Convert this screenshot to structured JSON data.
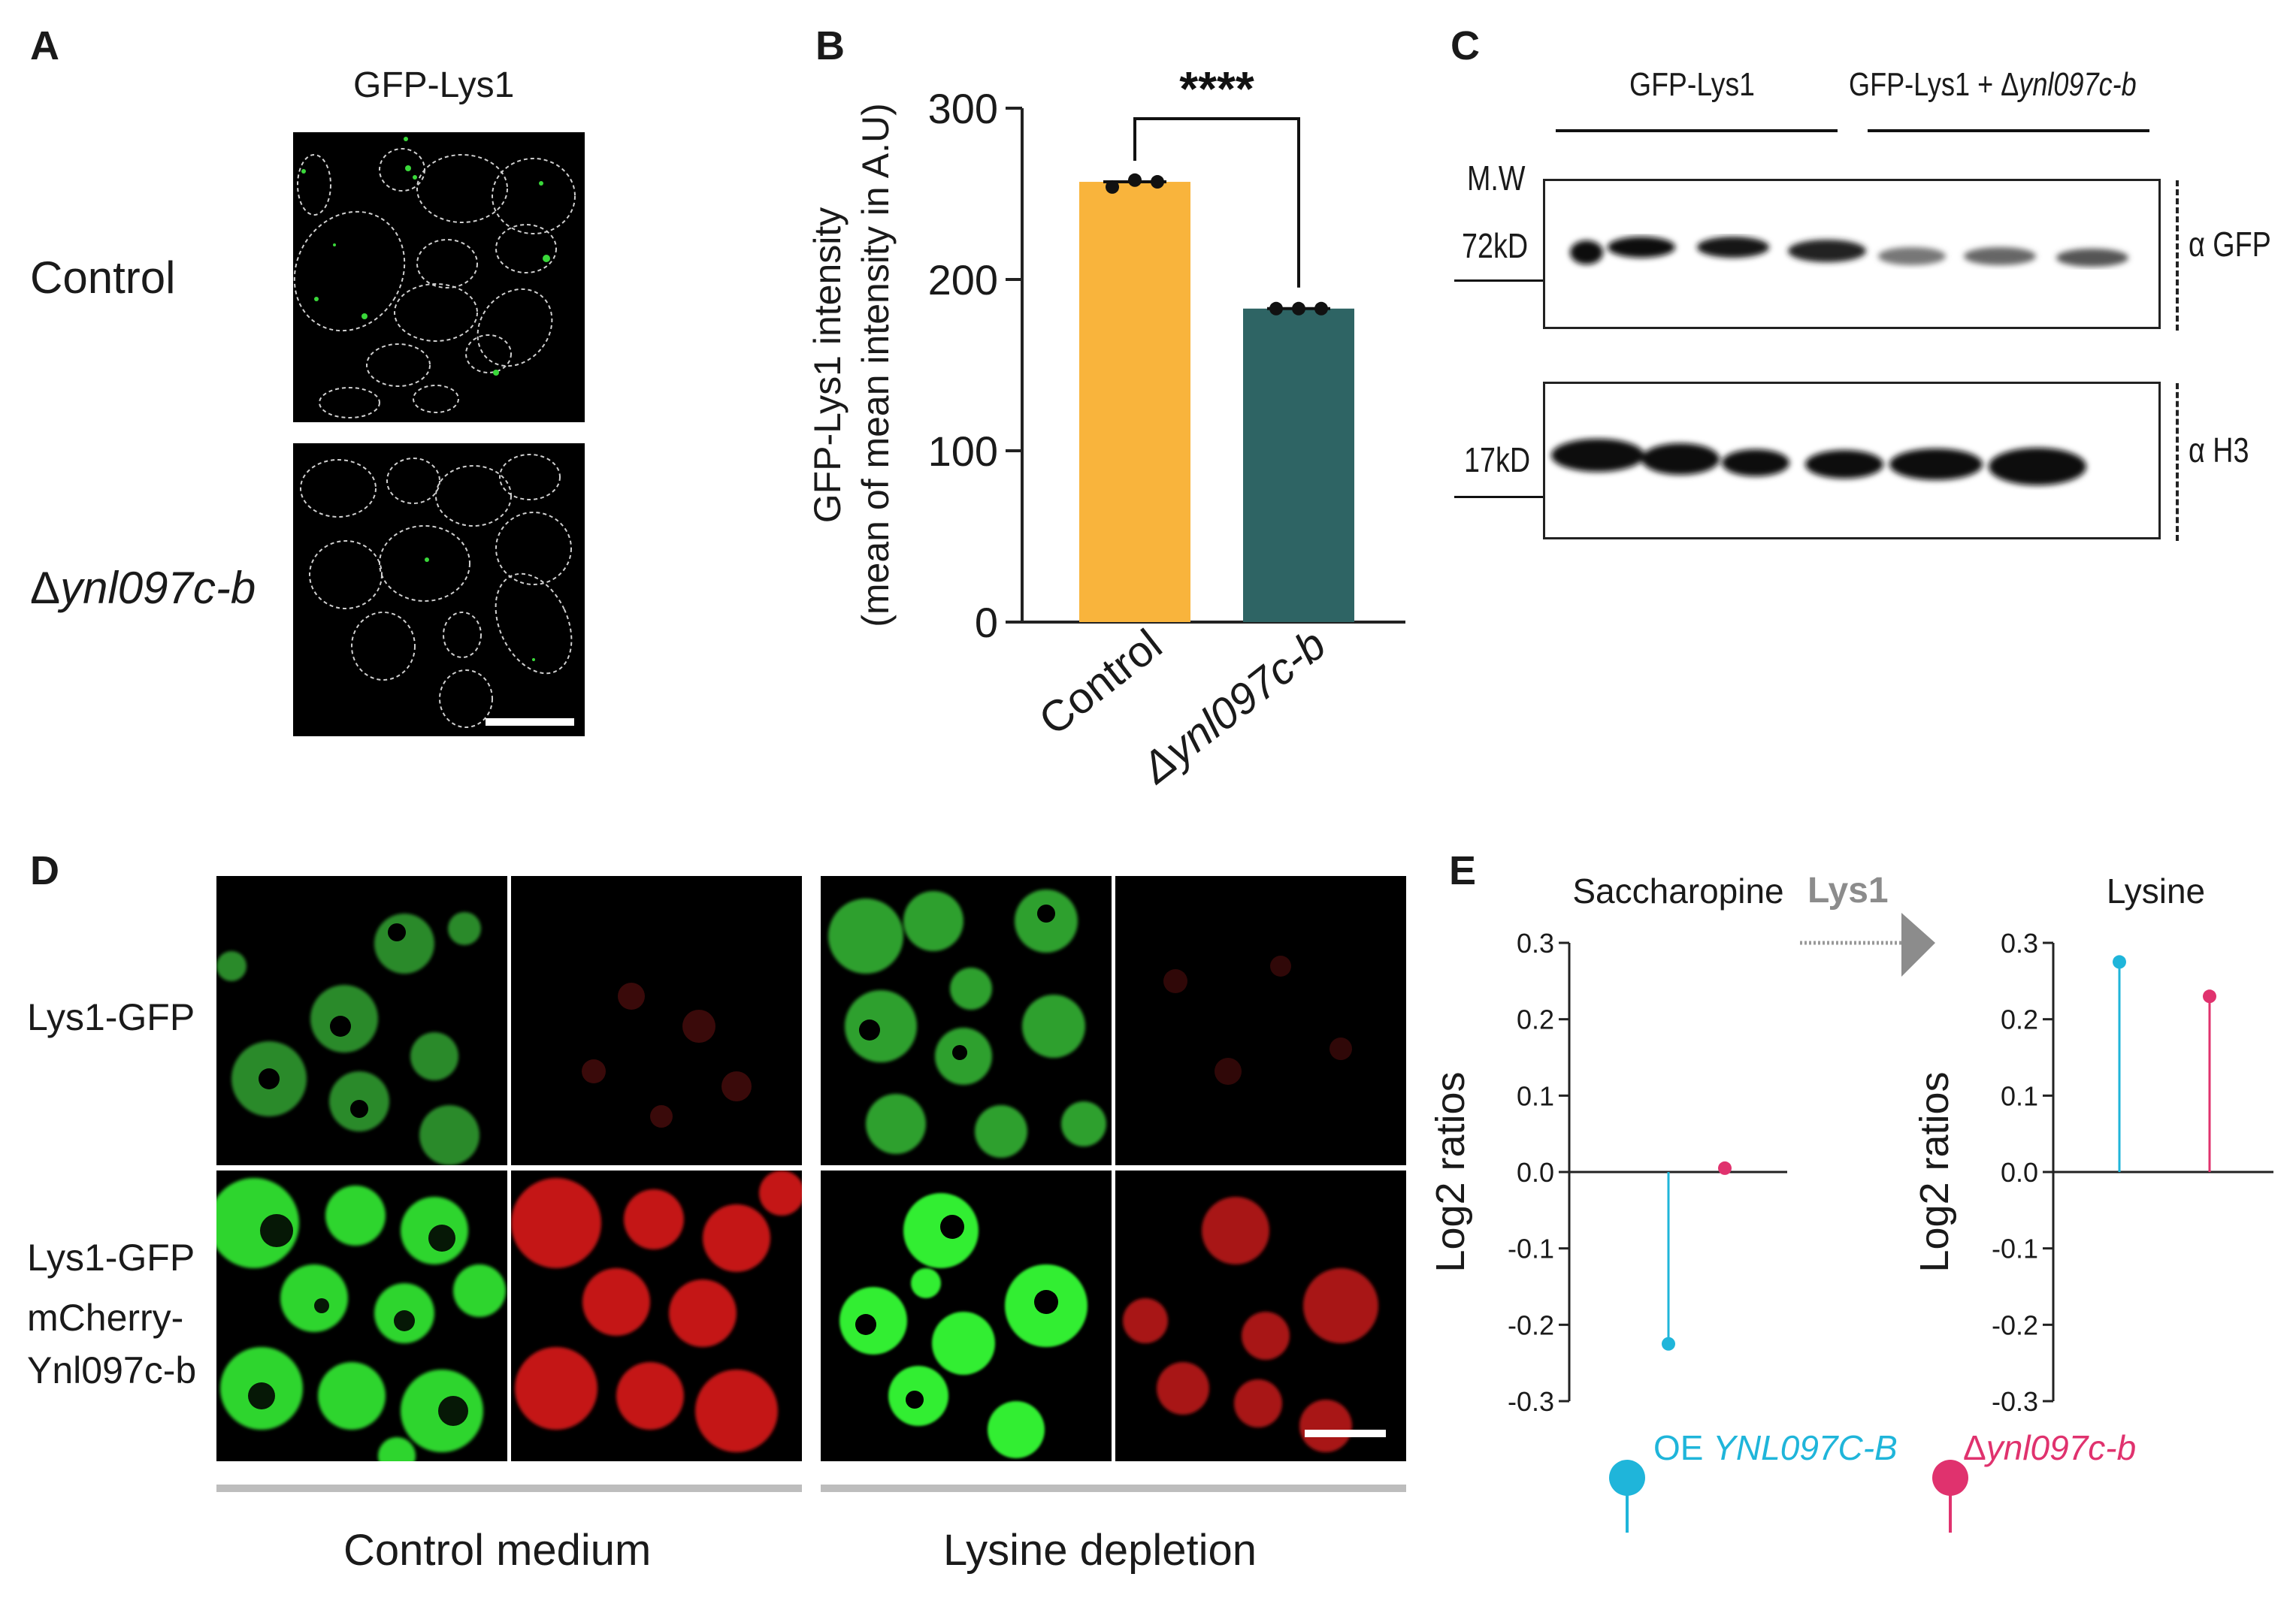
{
  "panel_labels": {
    "a": "A",
    "b": "B",
    "c": "C",
    "d": "D",
    "e": "E"
  },
  "panel_a": {
    "title": "GFP-Lys1",
    "row1": "Control",
    "row2_prefix": "Δ",
    "row2_gene": "ynl097c-b"
  },
  "panel_b": {
    "significance": "****"
  },
  "panel_c": {
    "group1": "GFP-Lys1",
    "group2_prefix": "GFP-Lys1 + Δ",
    "group2_gene": "ynl097c-b",
    "mw": "M.W",
    "kd72": "72kD",
    "kd17": "17kD",
    "ab1": "α GFP",
    "ab2": "α H3"
  },
  "panel_d": {
    "row1": "Lys1-GFP",
    "row2_line1": "Lys1-GFP",
    "row2_line2": "mCherry-",
    "row2_line3": "Ynl097c-b",
    "cond1": "Control medium",
    "cond2": "Lysine depletion"
  },
  "panel_e": {
    "arrow_label": "Lys1",
    "legend1_prefix": "OE ",
    "legend1_gene": "YNL097C-B",
    "legend2_prefix": "Δ",
    "legend2_gene": "ynl097c-b"
  },
  "colors": {
    "control_bar": "#F9B43C",
    "deletion_bar": "#2E6464",
    "oe_cyan": "#1FB5DA",
    "del_pink": "#E0326E",
    "gfp": "#32D232",
    "mcherry": "#D21E1E"
  },
  "chart_data": [
    {
      "type": "bar",
      "categories": [
        "Control",
        "Δynl097c-b"
      ],
      "values": [
        257,
        183
      ],
      "points": [
        [
          254,
          258,
          257
        ],
        [
          183,
          183,
          183
        ]
      ],
      "ylabel": "GFP-Lys1 intensity (mean of mean intensity in A.U)",
      "ylim": [
        0,
        300
      ],
      "yticks": [
        0,
        100,
        200,
        300
      ]
    },
    {
      "type": "scatter",
      "title": "Saccharopine",
      "ylabel": "Log2 ratios",
      "ylim": [
        -0.3,
        0.3
      ],
      "yticks": [
        0.3,
        0.2,
        0.1,
        0.0,
        -0.1,
        -0.2,
        -0.3
      ],
      "series": [
        {
          "name": "OE YNL097C-B",
          "values": [
            -0.225
          ]
        },
        {
          "name": "Δynl097c-b",
          "values": [
            0.005
          ]
        }
      ]
    },
    {
      "type": "scatter",
      "title": "Lysine",
      "ylabel": "Log2 ratios",
      "ylim": [
        -0.3,
        0.3
      ],
      "yticks": [
        0.3,
        0.2,
        0.1,
        0.0,
        -0.1,
        -0.2,
        -0.3
      ],
      "series": [
        {
          "name": "OE YNL097C-B",
          "values": [
            0.275
          ]
        },
        {
          "name": "Δynl097c-b",
          "values": [
            0.23
          ]
        }
      ]
    }
  ]
}
